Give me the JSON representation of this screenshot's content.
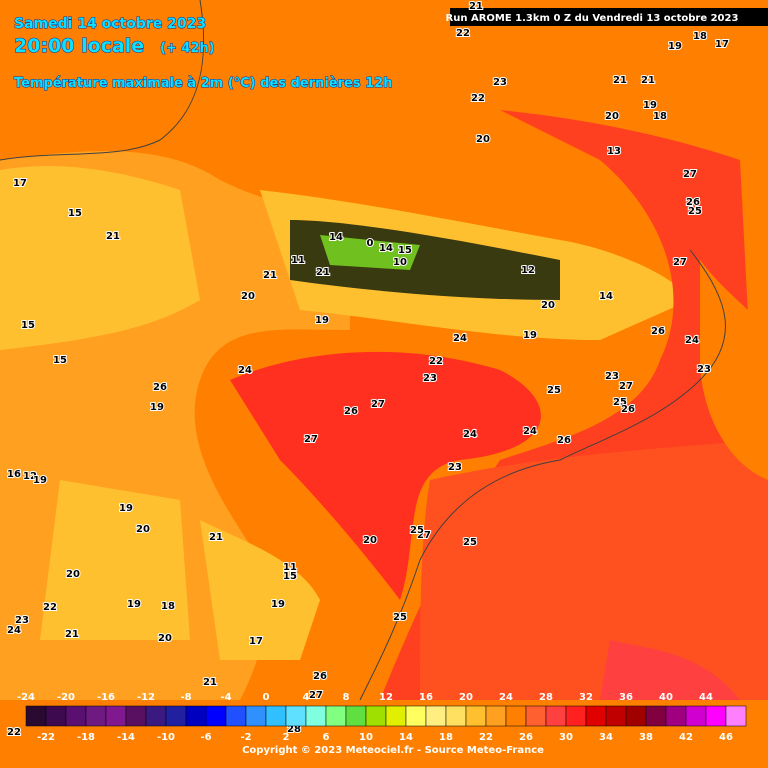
{
  "header": {
    "date": "Samedi 14 octobre 2023",
    "time": "20:00 locale",
    "lead": "(+ 42h)",
    "parameter": "Température maximale à 2m (°C) des dernières 12h",
    "run": "Run AROME 1.3km 0 Z du Vendredi 13 octobre 2023"
  },
  "map_labels": [
    21,
    22,
    19,
    18,
    17,
    23,
    21,
    21,
    22,
    19,
    20,
    18,
    20,
    13,
    27,
    17,
    26,
    25,
    15,
    21,
    27,
    14,
    0,
    14,
    15,
    11,
    21,
    21,
    20,
    12,
    10,
    20,
    14,
    19,
    15,
    26,
    24,
    24,
    19,
    15,
    22,
    24,
    23,
    23,
    23,
    27,
    25,
    26,
    19,
    25,
    26,
    27,
    26,
    27,
    24,
    24,
    26,
    23,
    16,
    12,
    19,
    19,
    20,
    27,
    21,
    25,
    25,
    20,
    11,
    15,
    20,
    19,
    18,
    19,
    23,
    22,
    24,
    21,
    20,
    17,
    25,
    26,
    21,
    27,
    28,
    22
  ],
  "legend": {
    "values": [
      -24,
      -22,
      -20,
      -18,
      -16,
      -14,
      -12,
      -10,
      -8,
      -6,
      -4,
      -2,
      0,
      2,
      4,
      6,
      8,
      10,
      12,
      14,
      16,
      18,
      20,
      22,
      24,
      26,
      28,
      30,
      32,
      34,
      36,
      38,
      40,
      42,
      44,
      46
    ],
    "colors": [
      "#2a0a30",
      "#3d0a50",
      "#5a1070",
      "#6e1a80",
      "#801890",
      "#5a1060",
      "#3a1a80",
      "#2020a0",
      "#0000c0",
      "#0000ff",
      "#2050ff",
      "#3090ff",
      "#30c0ff",
      "#60e0ff",
      "#80ffe0",
      "#80ff80",
      "#60e040",
      "#a0e000",
      "#e0f000",
      "#ffff60",
      "#ffee80",
      "#ffe060",
      "#ffc030",
      "#ffa020",
      "#ff8000",
      "#ff6030",
      "#ff4040",
      "#ff2020",
      "#e00000",
      "#c00000",
      "#a00000",
      "#800040",
      "#a00080",
      "#d000d0",
      "#ff00ff",
      "#ff80ff"
    ]
  },
  "footer": {
    "copyright": "Copyright © 2023 Meteociel.fr - Source Meteo-France"
  }
}
